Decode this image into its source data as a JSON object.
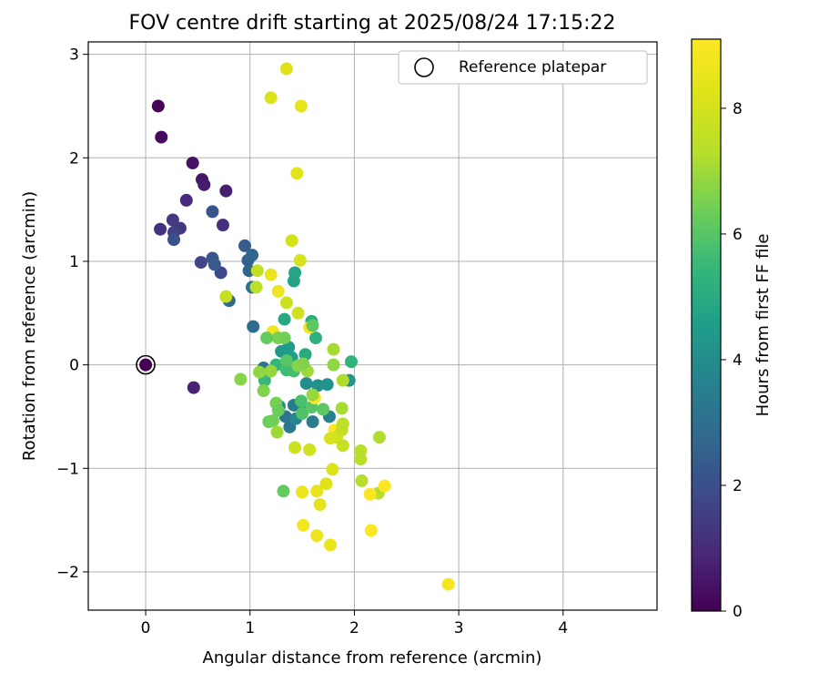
{
  "chart_data": {
    "type": "scatter",
    "title": "FOV centre drift starting at 2025/08/24 17:15:22",
    "xlabel": "Angular distance from reference (arcmin)",
    "ylabel": "Rotation from reference (arcmin)",
    "xlim": [
      -0.55,
      4.9
    ],
    "ylim": [
      -2.37,
      3.12
    ],
    "xticks": [
      0,
      1,
      2,
      3,
      4
    ],
    "yticks": [
      -2,
      -1,
      0,
      1,
      2,
      3
    ],
    "grid": true,
    "legend": {
      "position": "top-right",
      "entries": [
        "Reference platepar"
      ]
    },
    "reference_point": {
      "x": 0,
      "y": 0
    },
    "colorbar": {
      "label": "Hours from first FF file",
      "colormap": "viridis",
      "range": [
        0,
        9.1
      ],
      "ticks": [
        0,
        2,
        4,
        6,
        8
      ]
    },
    "points": [
      {
        "x": 0.0,
        "y": 0.0,
        "h": 0.0
      },
      {
        "x": 0.12,
        "y": 2.5,
        "h": 0.1
      },
      {
        "x": 0.15,
        "y": 2.2,
        "h": 0.2
      },
      {
        "x": 0.45,
        "y": 1.95,
        "h": 0.4
      },
      {
        "x": 0.54,
        "y": 1.79,
        "h": 0.5
      },
      {
        "x": 0.56,
        "y": 1.74,
        "h": 0.6
      },
      {
        "x": 0.77,
        "y": 1.68,
        "h": 0.7
      },
      {
        "x": 0.46,
        "y": -0.22,
        "h": 0.8
      },
      {
        "x": 0.39,
        "y": 1.59,
        "h": 1.0
      },
      {
        "x": 0.74,
        "y": 1.35,
        "h": 1.1
      },
      {
        "x": 0.14,
        "y": 1.31,
        "h": 1.2
      },
      {
        "x": 0.33,
        "y": 1.32,
        "h": 1.3
      },
      {
        "x": 0.26,
        "y": 1.4,
        "h": 1.4
      },
      {
        "x": 0.27,
        "y": 1.28,
        "h": 1.6
      },
      {
        "x": 0.53,
        "y": 0.99,
        "h": 1.7
      },
      {
        "x": 0.72,
        "y": 0.89,
        "h": 1.8
      },
      {
        "x": 0.27,
        "y": 1.21,
        "h": 2.0
      },
      {
        "x": 0.64,
        "y": 1.48,
        "h": 2.1
      },
      {
        "x": 0.64,
        "y": 1.03,
        "h": 2.2
      },
      {
        "x": 0.66,
        "y": 0.97,
        "h": 2.3
      },
      {
        "x": 0.95,
        "y": 1.15,
        "h": 2.4
      },
      {
        "x": 0.98,
        "y": 1.01,
        "h": 2.5
      },
      {
        "x": 0.99,
        "y": 0.91,
        "h": 2.6
      },
      {
        "x": 1.02,
        "y": 1.06,
        "h": 2.7
      },
      {
        "x": 0.8,
        "y": 0.62,
        "h": 2.8
      },
      {
        "x": 1.03,
        "y": 0.37,
        "h": 2.9
      },
      {
        "x": 1.02,
        "y": 0.75,
        "h": 3.0
      },
      {
        "x": 1.13,
        "y": -0.03,
        "h": 3.1
      },
      {
        "x": 1.34,
        "y": -0.5,
        "h": 3.2
      },
      {
        "x": 1.38,
        "y": -0.6,
        "h": 3.3
      },
      {
        "x": 1.42,
        "y": -0.39,
        "h": 3.4
      },
      {
        "x": 1.6,
        "y": -0.55,
        "h": 3.5
      },
      {
        "x": 1.76,
        "y": -0.5,
        "h": 3.6
      },
      {
        "x": 1.28,
        "y": -0.4,
        "h": 3.7
      },
      {
        "x": 1.44,
        "y": -0.52,
        "h": 3.8
      },
      {
        "x": 1.52,
        "y": -0.42,
        "h": 3.9
      },
      {
        "x": 1.54,
        "y": -0.18,
        "h": 4.0
      },
      {
        "x": 1.65,
        "y": -0.2,
        "h": 4.1
      },
      {
        "x": 1.74,
        "y": -0.19,
        "h": 4.2
      },
      {
        "x": 1.95,
        "y": -0.15,
        "h": 4.3
      },
      {
        "x": 1.3,
        "y": 0.13,
        "h": 4.4
      },
      {
        "x": 1.37,
        "y": 0.17,
        "h": 4.5
      },
      {
        "x": 1.4,
        "y": 0.07,
        "h": 4.6
      },
      {
        "x": 1.42,
        "y": 0.81,
        "h": 4.7
      },
      {
        "x": 1.43,
        "y": 0.89,
        "h": 4.8
      },
      {
        "x": 1.33,
        "y": 0.44,
        "h": 4.9
      },
      {
        "x": 1.53,
        "y": 0.1,
        "h": 5.0
      },
      {
        "x": 1.59,
        "y": 0.42,
        "h": 5.1
      },
      {
        "x": 1.63,
        "y": 0.26,
        "h": 5.2
      },
      {
        "x": 1.97,
        "y": 0.03,
        "h": 5.3
      },
      {
        "x": 1.25,
        "y": 0.0,
        "h": 5.4
      },
      {
        "x": 1.14,
        "y": -0.15,
        "h": 5.5
      },
      {
        "x": 1.35,
        "y": -0.05,
        "h": 5.6
      },
      {
        "x": 1.42,
        "y": -0.06,
        "h": 5.7
      },
      {
        "x": 1.49,
        "y": -0.35,
        "h": 5.8
      },
      {
        "x": 1.5,
        "y": -0.47,
        "h": 5.9
      },
      {
        "x": 1.59,
        "y": -0.41,
        "h": 6.0
      },
      {
        "x": 1.7,
        "y": -0.43,
        "h": 6.1
      },
      {
        "x": 1.32,
        "y": -1.22,
        "h": 6.2
      },
      {
        "x": 1.18,
        "y": -0.55,
        "h": 6.3
      },
      {
        "x": 1.22,
        "y": -0.54,
        "h": 6.4
      },
      {
        "x": 1.25,
        "y": -0.37,
        "h": 6.5
      },
      {
        "x": 1.13,
        "y": -0.25,
        "h": 6.6
      },
      {
        "x": 0.91,
        "y": -0.14,
        "h": 6.7
      },
      {
        "x": 1.09,
        "y": -0.07,
        "h": 6.8
      },
      {
        "x": 1.2,
        "y": -0.06,
        "h": 6.9
      },
      {
        "x": 1.55,
        "y": -0.06,
        "h": 7.0
      },
      {
        "x": 1.8,
        "y": 0.15,
        "h": 7.1
      },
      {
        "x": 1.89,
        "y": -0.15,
        "h": 7.2
      },
      {
        "x": 2.07,
        "y": -1.12,
        "h": 7.3
      },
      {
        "x": 2.23,
        "y": -1.24,
        "h": 7.4
      },
      {
        "x": 1.06,
        "y": 0.75,
        "h": 7.5
      },
      {
        "x": 1.07,
        "y": 0.91,
        "h": 7.6
      },
      {
        "x": 0.77,
        "y": 0.66,
        "h": 7.7
      },
      {
        "x": 1.35,
        "y": 0.6,
        "h": 7.8
      },
      {
        "x": 1.46,
        "y": 0.5,
        "h": 7.9
      },
      {
        "x": 1.4,
        "y": 1.2,
        "h": 8.0
      },
      {
        "x": 1.48,
        "y": 1.01,
        "h": 8.1
      },
      {
        "x": 1.2,
        "y": 2.58,
        "h": 8.2
      },
      {
        "x": 1.35,
        "y": 2.86,
        "h": 8.3
      },
      {
        "x": 1.45,
        "y": 1.85,
        "h": 8.4
      },
      {
        "x": 1.49,
        "y": 2.5,
        "h": 8.5
      },
      {
        "x": 1.2,
        "y": 0.87,
        "h": 8.6
      },
      {
        "x": 1.27,
        "y": 0.71,
        "h": 8.7
      },
      {
        "x": 1.22,
        "y": 0.32,
        "h": 8.8
      },
      {
        "x": 1.57,
        "y": 0.36,
        "h": 8.9
      },
      {
        "x": 1.62,
        "y": -0.32,
        "h": 9.0
      },
      {
        "x": 1.81,
        "y": -0.63,
        "h": 9.1
      },
      {
        "x": 2.29,
        "y": -1.17,
        "h": 9.1
      },
      {
        "x": 2.15,
        "y": -1.25,
        "h": 9.0
      },
      {
        "x": 2.16,
        "y": -1.6,
        "h": 9.0
      },
      {
        "x": 2.9,
        "y": -2.12,
        "h": 8.9
      },
      {
        "x": 1.51,
        "y": -1.55,
        "h": 8.8
      },
      {
        "x": 1.64,
        "y": -1.65,
        "h": 8.7
      },
      {
        "x": 1.77,
        "y": -1.74,
        "h": 8.6
      },
      {
        "x": 1.5,
        "y": -1.23,
        "h": 8.6
      },
      {
        "x": 1.64,
        "y": -1.22,
        "h": 8.5
      },
      {
        "x": 1.67,
        "y": -1.35,
        "h": 8.4
      },
      {
        "x": 1.73,
        "y": -1.15,
        "h": 8.3
      },
      {
        "x": 1.79,
        "y": -1.01,
        "h": 8.2
      },
      {
        "x": 1.77,
        "y": -0.71,
        "h": 8.1
      },
      {
        "x": 1.83,
        "y": -0.7,
        "h": 8.0
      },
      {
        "x": 1.57,
        "y": -0.82,
        "h": 7.9
      },
      {
        "x": 1.43,
        "y": -0.8,
        "h": 7.8
      },
      {
        "x": 1.89,
        "y": -0.78,
        "h": 7.7
      },
      {
        "x": 1.88,
        "y": -0.63,
        "h": 7.6
      },
      {
        "x": 1.89,
        "y": -0.57,
        "h": 7.5
      },
      {
        "x": 2.06,
        "y": -0.83,
        "h": 7.4
      },
      {
        "x": 2.06,
        "y": -0.91,
        "h": 7.3
      },
      {
        "x": 2.24,
        "y": -0.7,
        "h": 7.2
      },
      {
        "x": 1.88,
        "y": -0.42,
        "h": 7.1
      },
      {
        "x": 1.26,
        "y": -0.65,
        "h": 7.0
      },
      {
        "x": 1.6,
        "y": -0.29,
        "h": 6.9
      },
      {
        "x": 1.8,
        "y": 0.0,
        "h": 6.8
      },
      {
        "x": 1.46,
        "y": -0.01,
        "h": 6.7
      },
      {
        "x": 1.51,
        "y": 0.01,
        "h": 6.6
      },
      {
        "x": 1.27,
        "y": 0.26,
        "h": 6.5
      },
      {
        "x": 1.33,
        "y": 0.26,
        "h": 6.4
      },
      {
        "x": 1.27,
        "y": -0.44,
        "h": 6.3
      },
      {
        "x": 1.16,
        "y": 0.26,
        "h": 6.2
      },
      {
        "x": 1.6,
        "y": 0.38,
        "h": 6.1
      },
      {
        "x": 1.35,
        "y": 0.04,
        "h": 6.0
      }
    ]
  }
}
